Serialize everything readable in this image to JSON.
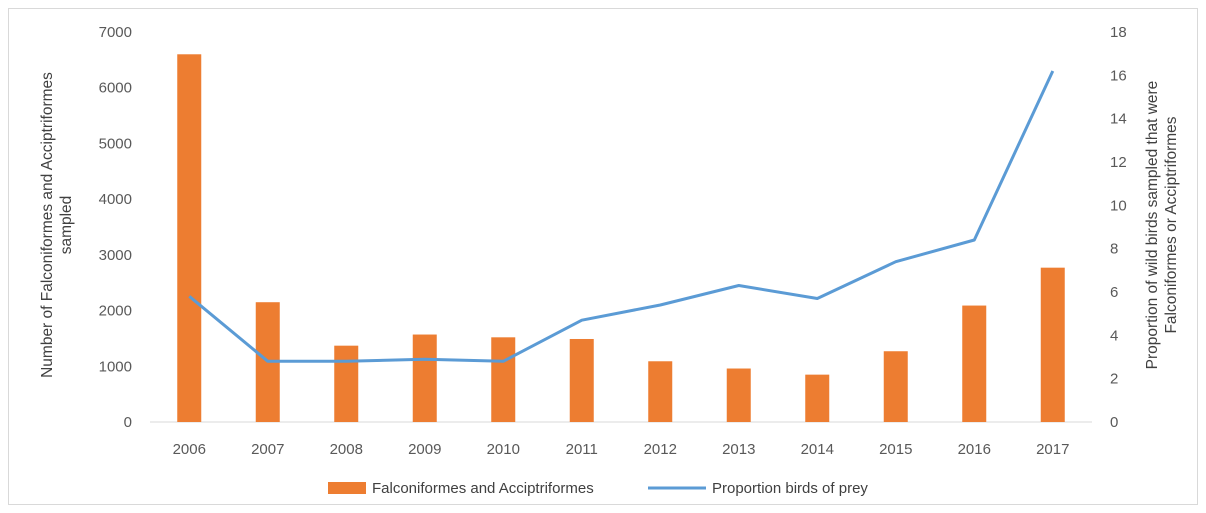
{
  "chart_data": {
    "type": "bar+line",
    "categories": [
      "2006",
      "2007",
      "2008",
      "2009",
      "2010",
      "2011",
      "2012",
      "2013",
      "2014",
      "2015",
      "2016",
      "2017"
    ],
    "series": [
      {
        "name": "Falconiformes and Acciptriformes",
        "kind": "bar",
        "axis": "left",
        "color": "#ED7D31",
        "values": [
          6600,
          2150,
          1370,
          1570,
          1520,
          1490,
          1090,
          960,
          850,
          1270,
          2090,
          2770
        ]
      },
      {
        "name": "Proportion birds of prey",
        "kind": "line",
        "axis": "right",
        "color": "#5B9BD5",
        "values": [
          5.8,
          2.8,
          2.8,
          2.9,
          2.8,
          4.7,
          5.4,
          6.3,
          5.7,
          7.4,
          8.4,
          16.2
        ]
      }
    ],
    "y_left": {
      "label_lines": [
        "Number of Falconiformes and Acciptriformes",
        "sampled"
      ],
      "ylim": [
        0,
        7000
      ],
      "ticks": [
        "0",
        "1000",
        "2000",
        "3000",
        "4000",
        "5000",
        "6000",
        "7000"
      ]
    },
    "y_right": {
      "label_lines": [
        "Proportion of wild birds sampled that were",
        "Falconiformes or Acciptriformes"
      ],
      "ylim": [
        0,
        18
      ],
      "ticks": [
        "0",
        "2",
        "4",
        "6",
        "8",
        "10",
        "12",
        "14",
        "16",
        "18"
      ]
    },
    "grid": false,
    "legend_position": "bottom"
  }
}
